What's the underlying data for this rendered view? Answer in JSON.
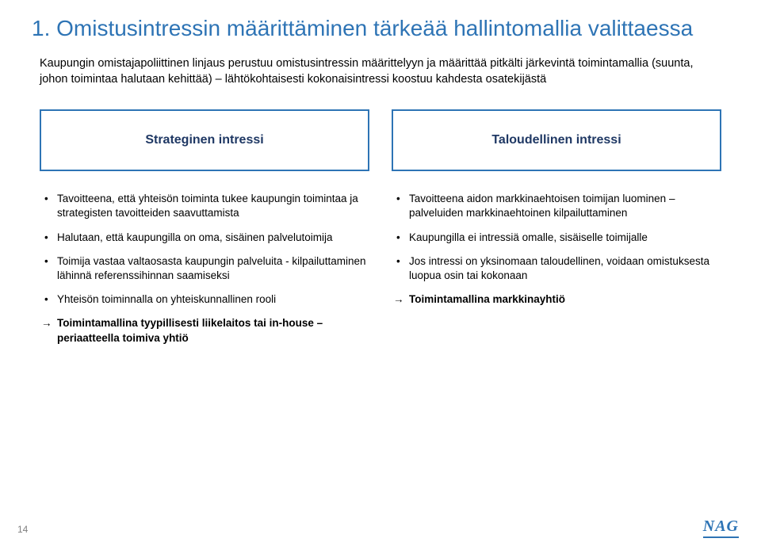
{
  "colors": {
    "title": "#2e74b5",
    "box_border": "#2e74b5",
    "box_text": "#1f3864",
    "logo": "#2e74b5",
    "footer": "#808080",
    "body_text": "#000000"
  },
  "title": "1. Omistusintressin määrittäminen tärkeää hallintomallia valittaessa",
  "intro": "Kaupungin omistajapoliittinen linjaus perustuu omistusintressin määrittelyyn ja määrittää pitkälti järkevintä toimintamallia (suunta, johon toimintaa halutaan kehittää) – lähtökohtaisesti kokonaisintressi koostuu kahdesta osatekijästä",
  "left": {
    "box": "Strateginen intressi",
    "items": [
      "Tavoitteena, että yhteisön toiminta tukee kaupungin toimintaa ja strategisten tavoitteiden saavuttamista",
      "Halutaan, että kaupungilla on oma, sisäinen palvelutoimija",
      "Toimija vastaa valtaosasta kaupungin palveluita - kilpailuttaminen lähinnä referenssihinnan saamiseksi",
      "Yhteisön toiminnalla on yhteiskunnallinen rooli"
    ],
    "conclusion": "Toimintamallina tyypillisesti liikelaitos tai in-house –periaatteella toimiva yhtiö"
  },
  "right": {
    "box": "Taloudellinen intressi",
    "items": [
      "Tavoitteena aidon markkinaehtoisen toimijan luominen – palveluiden markkinaehtoinen kilpailuttaminen",
      "Kaupungilla ei intressiä omalle, sisäiselle toimijalle",
      "Jos intressi on yksinomaan taloudellinen, voidaan omistuksesta luopua osin tai kokonaan"
    ],
    "conclusion": "Toimintamallina markkinayhtiö"
  },
  "footer": {
    "page": "14",
    "logo": "NAG"
  }
}
